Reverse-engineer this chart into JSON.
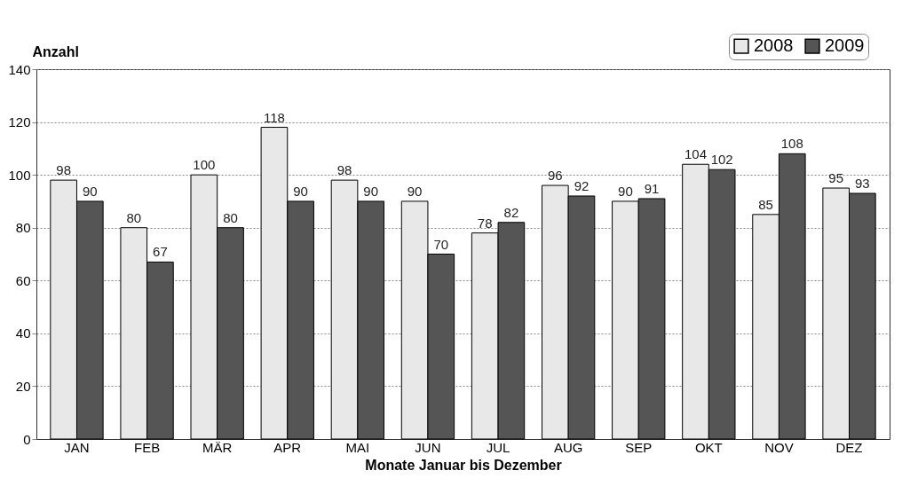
{
  "chart_data": {
    "type": "bar",
    "ylabel": "Anzahl",
    "xlabel": "Monate Januar bis Dezember",
    "categories": [
      "JAN",
      "FEB",
      "MÄR",
      "APR",
      "MAI",
      "JUN",
      "JUL",
      "AUG",
      "SEP",
      "OKT",
      "NOV",
      "DEZ"
    ],
    "series": [
      {
        "name": "2008",
        "color": "#e8e8e8",
        "values": [
          98,
          80,
          100,
          118,
          98,
          90,
          78,
          96,
          90,
          104,
          85,
          95
        ]
      },
      {
        "name": "2009",
        "color": "#555555",
        "values": [
          90,
          67,
          80,
          90,
          90,
          70,
          82,
          92,
          91,
          102,
          108,
          93
        ]
      }
    ],
    "ylim": [
      0,
      140
    ],
    "yticks": [
      0,
      20,
      40,
      60,
      80,
      100,
      120,
      140
    ],
    "grid": "y",
    "legend": "top right",
    "data_labels": true
  }
}
